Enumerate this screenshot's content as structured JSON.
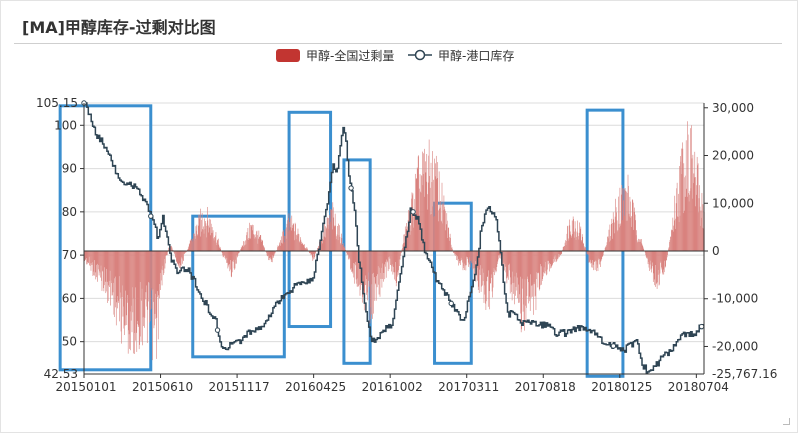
{
  "title": "[MA]甲醇库存-过剩对比图",
  "colors": {
    "bar": "#c23531",
    "bar_fill": "#d9837f",
    "line": "#2f4554",
    "box": "#3b8fcf"
  },
  "chart_data": {
    "type": "bar+line",
    "title": "[MA]甲醇库存-过剩对比图",
    "legend_position": "top-center",
    "x_tick_labels": [
      "20150101",
      "20150610",
      "20151117",
      "20160425",
      "20161002",
      "20170311",
      "20170818",
      "20180125",
      "20180704"
    ],
    "x_range_index": [
      0,
      1300
    ],
    "y_left": {
      "min": 42.53,
      "max": 105.15,
      "ticks": [
        50,
        60,
        70,
        80,
        90,
        100
      ],
      "edge_labels": [
        "42.53",
        "105.15"
      ]
    },
    "y_right": {
      "min": -25767.16,
      "max": 31000,
      "ticks": [
        -20000,
        -10000,
        0,
        10000,
        20000,
        30000
      ],
      "tick_labels": [
        "-20,000",
        "-10,000",
        "0",
        "10,000",
        "20,000",
        "30,000"
      ],
      "edge_label": "-25,767.16"
    },
    "grid": true,
    "series": [
      {
        "name": "甲醇-全国过剩量",
        "type": "bar",
        "axis": "right",
        "anchors": [
          [
            0,
            -2000
          ],
          [
            30,
            -6000
          ],
          [
            60,
            -11000
          ],
          [
            80,
            -17000
          ],
          [
            100,
            -20000
          ],
          [
            125,
            -16000
          ],
          [
            150,
            -21000
          ],
          [
            165,
            -5000
          ],
          [
            180,
            2000
          ],
          [
            200,
            -4000
          ],
          [
            230,
            4000
          ],
          [
            250,
            9000
          ],
          [
            270,
            6000
          ],
          [
            290,
            -1000
          ],
          [
            310,
            -5000
          ],
          [
            330,
            1000
          ],
          [
            350,
            6000
          ],
          [
            370,
            3000
          ],
          [
            390,
            -3000
          ],
          [
            410,
            2000
          ],
          [
            430,
            7000
          ],
          [
            450,
            4000
          ],
          [
            480,
            -2000
          ],
          [
            500,
            4000
          ],
          [
            520,
            9000
          ],
          [
            540,
            3000
          ],
          [
            560,
            -4000
          ],
          [
            580,
            -9000
          ],
          [
            600,
            -13000
          ],
          [
            620,
            -8000
          ],
          [
            640,
            -3000
          ],
          [
            655,
            -7000
          ],
          [
            670,
            3000
          ],
          [
            700,
            17000
          ],
          [
            720,
            20000
          ],
          [
            740,
            17000
          ],
          [
            760,
            7000
          ],
          [
            775,
            -1000
          ],
          [
            790,
            -4000
          ],
          [
            810,
            -3000
          ],
          [
            830,
            -8000
          ],
          [
            850,
            -12000
          ],
          [
            860,
            -6000
          ],
          [
            870,
            -1000
          ],
          [
            880,
            -4000
          ],
          [
            900,
            -10000
          ],
          [
            920,
            -16000
          ],
          [
            940,
            -13000
          ],
          [
            960,
            -6000
          ],
          [
            980,
            -3000
          ],
          [
            1000,
            -1000
          ],
          [
            1020,
            8000
          ],
          [
            1040,
            5000
          ],
          [
            1060,
            -3000
          ],
          [
            1080,
            -4000
          ],
          [
            1100,
            4000
          ],
          [
            1120,
            12000
          ],
          [
            1140,
            14000
          ],
          [
            1160,
            5000
          ],
          [
            1180,
            -2000
          ],
          [
            1200,
            -8000
          ],
          [
            1220,
            -3000
          ],
          [
            1235,
            8000
          ],
          [
            1250,
            19000
          ],
          [
            1265,
            26000
          ],
          [
            1280,
            19000
          ],
          [
            1295,
            12000
          ],
          [
            1300,
            9000
          ]
        ]
      },
      {
        "name": "甲醇-港口库存",
        "type": "line",
        "axis": "left",
        "anchors": [
          [
            0,
            105.15
          ],
          [
            10,
            103
          ],
          [
            25,
            98
          ],
          [
            45,
            95
          ],
          [
            70,
            88
          ],
          [
            90,
            86
          ],
          [
            110,
            86
          ],
          [
            125,
            83
          ],
          [
            140,
            79
          ],
          [
            155,
            74
          ],
          [
            165,
            79
          ],
          [
            180,
            70
          ],
          [
            195,
            66
          ],
          [
            215,
            67
          ],
          [
            240,
            62
          ],
          [
            258,
            58
          ],
          [
            275,
            55
          ],
          [
            290,
            48
          ],
          [
            305,
            49
          ],
          [
            325,
            50
          ],
          [
            345,
            52
          ],
          [
            360,
            53
          ],
          [
            380,
            54
          ],
          [
            398,
            58
          ],
          [
            415,
            60
          ],
          [
            430,
            61
          ],
          [
            448,
            64
          ],
          [
            462,
            63
          ],
          [
            480,
            65
          ],
          [
            492,
            72
          ],
          [
            510,
            82
          ],
          [
            522,
            91
          ],
          [
            530,
            89
          ],
          [
            538,
            96
          ],
          [
            545,
            100
          ],
          [
            555,
            89
          ],
          [
            565,
            82
          ],
          [
            575,
            70
          ],
          [
            585,
            61
          ],
          [
            595,
            54
          ],
          [
            605,
            50
          ],
          [
            615,
            51
          ],
          [
            630,
            53
          ],
          [
            645,
            54
          ],
          [
            655,
            60
          ],
          [
            665,
            67
          ],
          [
            675,
            74
          ],
          [
            685,
            81
          ],
          [
            700,
            78
          ],
          [
            712,
            72
          ],
          [
            725,
            68
          ],
          [
            740,
            64
          ],
          [
            752,
            62
          ],
          [
            765,
            60
          ],
          [
            778,
            57
          ],
          [
            795,
            55
          ],
          [
            810,
            61
          ],
          [
            825,
            69
          ],
          [
            832,
            76
          ],
          [
            845,
            81
          ],
          [
            860,
            80
          ],
          [
            870,
            74
          ],
          [
            880,
            63
          ],
          [
            890,
            56
          ],
          [
            900,
            57
          ],
          [
            915,
            54
          ],
          [
            930,
            55
          ],
          [
            950,
            54
          ],
          [
            970,
            54
          ],
          [
            990,
            52
          ],
          [
            1010,
            52
          ],
          [
            1030,
            53
          ],
          [
            1050,
            53
          ],
          [
            1070,
            52
          ],
          [
            1085,
            50
          ],
          [
            1100,
            49
          ],
          [
            1115,
            49
          ],
          [
            1130,
            48
          ],
          [
            1145,
            49
          ],
          [
            1160,
            50
          ],
          [
            1170,
            45
          ],
          [
            1182,
            43
          ],
          [
            1195,
            44
          ],
          [
            1215,
            47
          ],
          [
            1230,
            48
          ],
          [
            1250,
            51
          ],
          [
            1265,
            52
          ],
          [
            1280,
            52
          ],
          [
            1300,
            54
          ]
        ]
      }
    ],
    "annotations": [
      {
        "type": "rect",
        "index_range": [
          -50,
          140
        ],
        "y_left_range": [
          43.5,
          104.5
        ]
      },
      {
        "type": "rect",
        "index_range": [
          228,
          420
        ],
        "y_left_range": [
          46.5,
          79.0
        ]
      },
      {
        "type": "rect",
        "index_range": [
          430,
          517
        ],
        "y_left_range": [
          53.5,
          103.0
        ]
      },
      {
        "type": "rect",
        "index_range": [
          545,
          600
        ],
        "y_left_range": [
          45.0,
          92.0
        ]
      },
      {
        "type": "rect",
        "index_range": [
          735,
          812
        ],
        "y_left_range": [
          45.0,
          82.0
        ]
      },
      {
        "type": "rect",
        "index_range": [
          1055,
          1130
        ],
        "y_left_range": [
          42.0,
          103.5
        ]
      }
    ]
  }
}
